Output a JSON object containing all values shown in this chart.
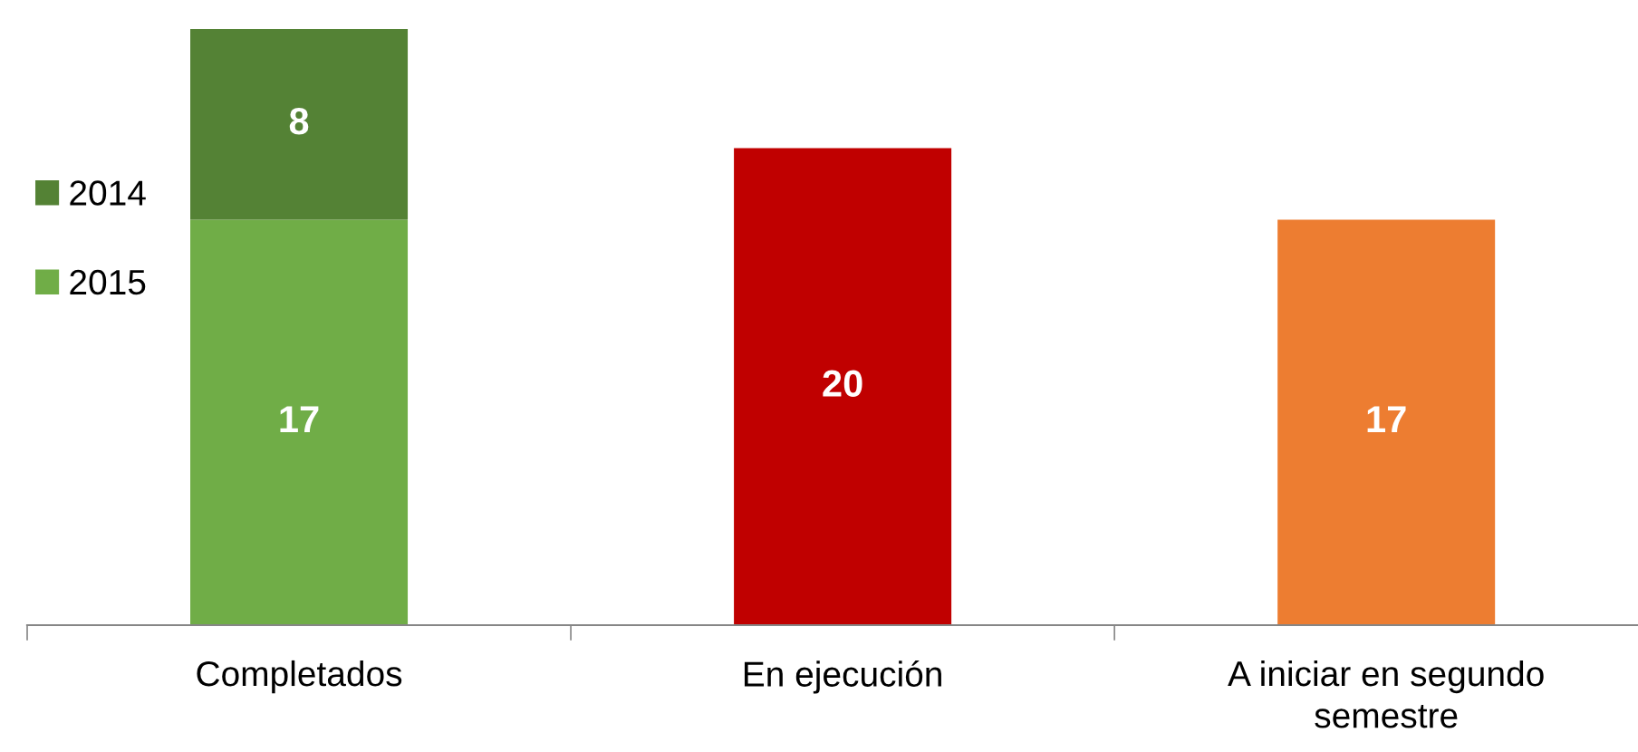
{
  "chart_data": {
    "type": "bar",
    "stacked": true,
    "categories": [
      "Completados",
      "En ejecución",
      "A iniciar en segundo semestre"
    ],
    "series": [
      {
        "name": "2015",
        "color": "#70ad47",
        "colors": [
          "#70ad47",
          "#c00000",
          "#ed7d31"
        ],
        "values": [
          17,
          20,
          17
        ]
      },
      {
        "name": "2014",
        "color": "#548235",
        "values": [
          8,
          null,
          null
        ]
      }
    ],
    "data_labels": true,
    "legend": "left",
    "grid": false
  }
}
